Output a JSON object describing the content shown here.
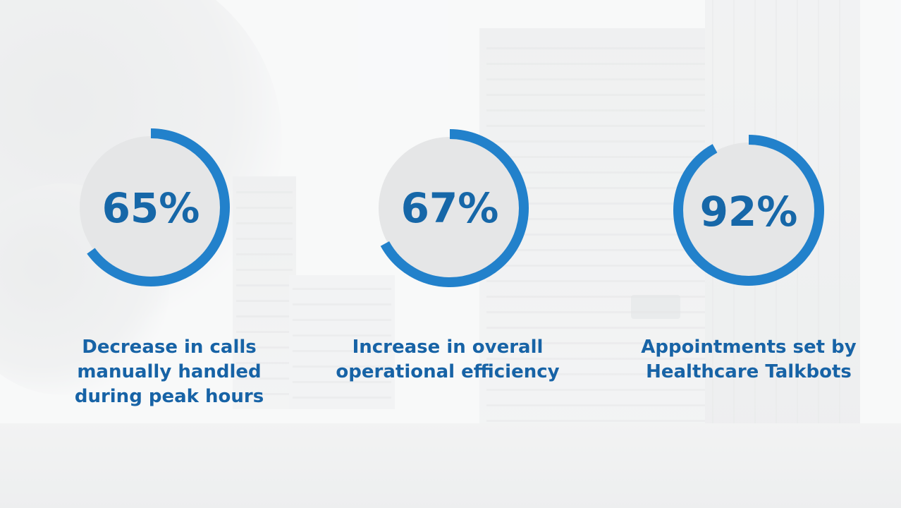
{
  "stats": [
    {
      "value": "65%",
      "percent": 65,
      "caption_lines": [
        "Decrease in calls",
        "manually handled",
        "during peak hours"
      ]
    },
    {
      "value": "67%",
      "percent": 67,
      "caption_lines": [
        "Increase in overall",
        "operational efficiency"
      ]
    },
    {
      "value": "92%",
      "percent": 92,
      "caption_lines": [
        "Appointments set by",
        "Healthcare Talkbots"
      ]
    }
  ],
  "colors": {
    "accent": "#2281cb",
    "text": "#1763a6",
    "disc": "#e5e6e7"
  }
}
